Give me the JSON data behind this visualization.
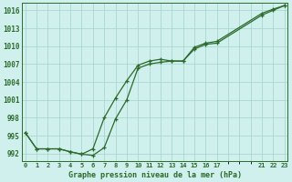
{
  "title": "Graphe pression niveau de la mer (hPa)",
  "bg_color": "#cff0ec",
  "line_color": "#2d6a2d",
  "grid_color": "#aad8d0",
  "ylim": [
    990.8,
    1017.2
  ],
  "yticks": [
    992,
    995,
    998,
    1001,
    1004,
    1007,
    1010,
    1013,
    1016
  ],
  "xlim": [
    -0.3,
    23.3
  ],
  "xtick_positions": [
    0,
    1,
    2,
    3,
    4,
    5,
    6,
    7,
    8,
    9,
    10,
    11,
    12,
    13,
    14,
    15,
    16,
    17,
    21,
    22,
    23
  ],
  "xtick_labels": [
    "0",
    "1",
    "2",
    "3",
    "4",
    "5",
    "6",
    "7",
    "8",
    "9",
    "10",
    "11",
    "12",
    "13",
    "14",
    "15",
    "16",
    "17",
    "21",
    "22",
    "23"
  ],
  "line1_x": [
    0,
    1,
    2,
    3,
    4,
    5,
    6,
    7,
    8,
    9,
    10,
    11,
    12,
    13,
    14,
    15,
    16,
    17,
    21,
    22,
    23
  ],
  "line1_y": [
    995.5,
    992.8,
    992.8,
    992.8,
    992.3,
    991.9,
    992.8,
    998.0,
    1001.3,
    1004.2,
    1006.8,
    1007.5,
    1007.8,
    1007.5,
    1007.5,
    1009.8,
    1010.5,
    1010.8,
    1015.5,
    1016.2,
    1016.8
  ],
  "line2_x": [
    0,
    1,
    2,
    3,
    4,
    5,
    6,
    7,
    8,
    9,
    10,
    11,
    12,
    13,
    14,
    15,
    16,
    17,
    21,
    22,
    23
  ],
  "line2_y": [
    995.5,
    992.8,
    992.8,
    992.8,
    992.3,
    991.9,
    991.7,
    993.0,
    997.8,
    1001.0,
    1006.3,
    1007.0,
    1007.3,
    1007.5,
    1007.5,
    1009.5,
    1010.3,
    1010.5,
    1015.2,
    1016.0,
    1016.8
  ]
}
